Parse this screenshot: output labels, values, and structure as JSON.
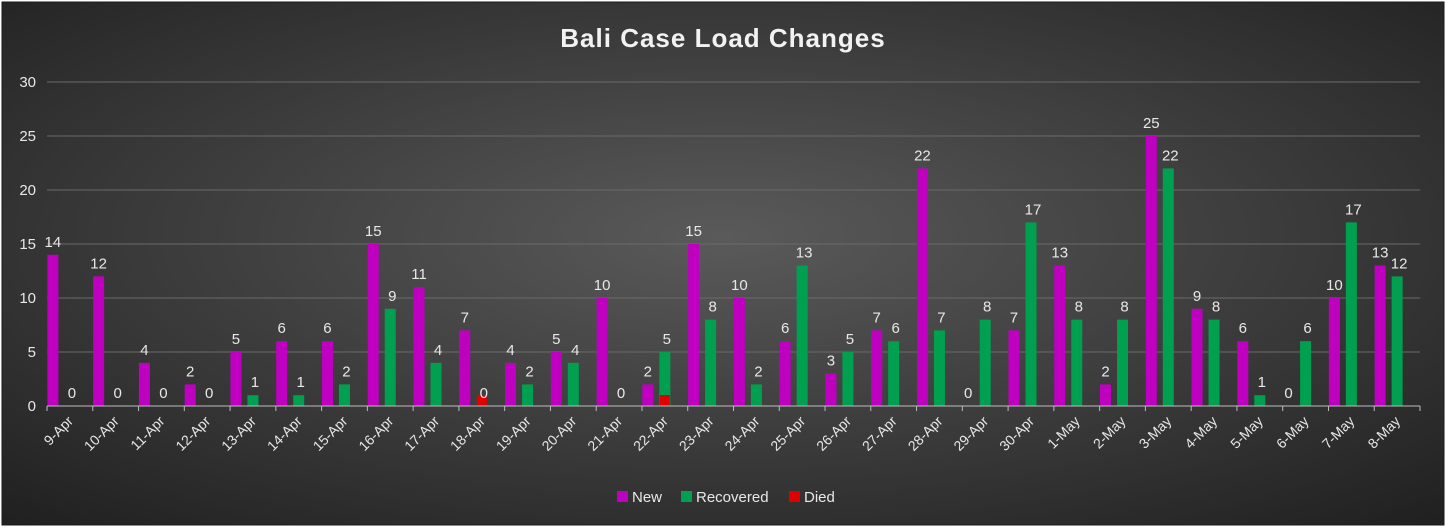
{
  "chart_data": {
    "type": "bar",
    "title": "Bali Case Load Changes",
    "categories": [
      "9-Apr",
      "10-Apr",
      "11-Apr",
      "12-Apr",
      "13-Apr",
      "14-Apr",
      "15-Apr",
      "16-Apr",
      "17-Apr",
      "18-Apr",
      "19-Apr",
      "20-Apr",
      "21-Apr",
      "22-Apr",
      "23-Apr",
      "24-Apr",
      "25-Apr",
      "26-Apr",
      "27-Apr",
      "28-Apr",
      "29-Apr",
      "30-Apr",
      "1-May",
      "2-May",
      "3-May",
      "4-May",
      "5-May",
      "6-May",
      "7-May",
      "8-May"
    ],
    "series": [
      {
        "name": "New",
        "color": "#C000C0",
        "values": [
          14,
          12,
          4,
          2,
          5,
          6,
          6,
          15,
          11,
          7,
          4,
          5,
          10,
          2,
          15,
          10,
          6,
          3,
          7,
          22,
          0,
          7,
          13,
          2,
          25,
          9,
          6,
          0,
          10,
          13
        ]
      },
      {
        "name": "Recovered",
        "color": "#00A050",
        "values": [
          0,
          0,
          0,
          0,
          1,
          1,
          2,
          9,
          4,
          null,
          2,
          4,
          0,
          5,
          8,
          2,
          13,
          5,
          6,
          7,
          8,
          17,
          8,
          8,
          22,
          8,
          1,
          6,
          17,
          12
        ]
      },
      {
        "name": "Died",
        "color": "#E00000",
        "values": [
          null,
          null,
          null,
          null,
          null,
          null,
          null,
          null,
          null,
          1,
          null,
          null,
          null,
          1,
          null,
          null,
          null,
          null,
          null,
          null,
          null,
          null,
          null,
          null,
          null,
          null,
          null,
          null,
          null,
          null
        ]
      }
    ],
    "data_labels": {
      "New": [
        "14",
        "12",
        "4",
        "2",
        "5",
        "6",
        "6",
        "15",
        "11",
        "7",
        "4",
        "5",
        "10",
        "2",
        "15",
        "10",
        "6",
        "3",
        "7",
        "22",
        "0",
        "7",
        "13",
        "2",
        "25",
        "9",
        "6",
        "0",
        "10",
        "13"
      ],
      "Recovered": [
        "0",
        "0",
        "0",
        "0",
        "1",
        "1",
        "2",
        "9",
        "4",
        "0",
        "2",
        "4",
        "0",
        "5",
        "8",
        "2",
        "13",
        "5",
        "6",
        "7",
        "8",
        "17",
        "8",
        "8",
        "22",
        "8",
        "1",
        "6",
        "17",
        "12"
      ]
    },
    "ylim": [
      0,
      30
    ],
    "yticks": [
      "0",
      "5",
      "10",
      "15",
      "20",
      "25",
      "30"
    ],
    "grid": true,
    "legend_position": "bottom",
    "background": "#3a3a3a",
    "text_color": "#e8e8e8"
  }
}
